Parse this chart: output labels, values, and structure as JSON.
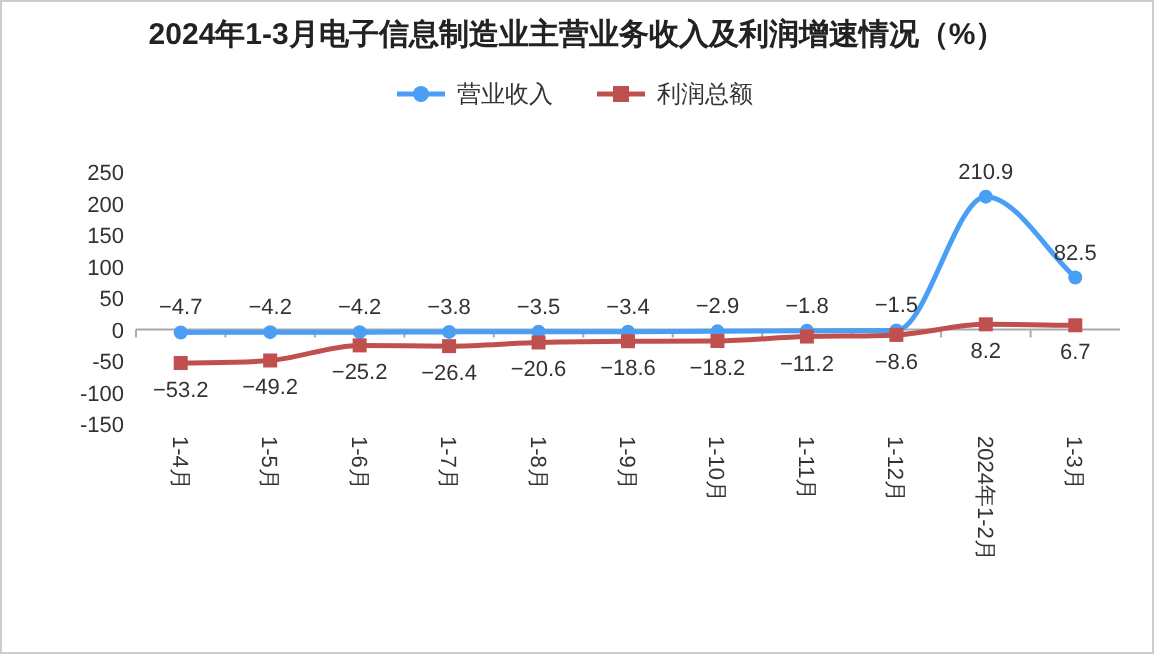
{
  "chart_data": {
    "type": "line",
    "title": "2024年1-3月电子信息制造业主营业务收入及利润增速情况（%）",
    "categories": [
      "1-4月",
      "1-5月",
      "1-6月",
      "1-7月",
      "1-8月",
      "1-9月",
      "1-10月",
      "1-11月",
      "1-12月",
      "2024年1-2月",
      "1-3月"
    ],
    "series": [
      {
        "name": "营业收入",
        "color": "#4a9ff5",
        "marker": "circle",
        "values": [
          -4.7,
          -4.2,
          -4.2,
          -3.8,
          -3.5,
          -3.4,
          -2.9,
          -1.8,
          -1.5,
          210.9,
          82.5
        ]
      },
      {
        "name": "利润总额",
        "color": "#c0504d",
        "marker": "square",
        "values": [
          -53.2,
          -49.2,
          -25.2,
          -26.4,
          -20.6,
          -18.6,
          -18.2,
          -11.2,
          -8.6,
          8.2,
          6.7
        ]
      }
    ],
    "ylim": [
      -150,
      250
    ],
    "yticks": [
      -150,
      -100,
      -50,
      0,
      50,
      100,
      150,
      200,
      250
    ],
    "legend": "top",
    "data_labels": true
  }
}
